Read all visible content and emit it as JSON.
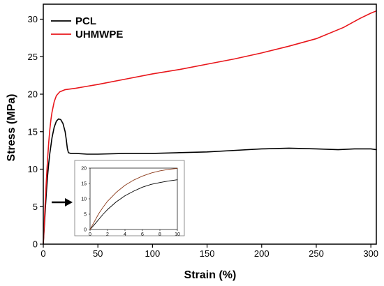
{
  "chart_data": [
    {
      "type": "line",
      "title": "",
      "xlabel": "Strain (%)",
      "ylabel": "Stress (MPa)",
      "xlim": [
        0,
        305
      ],
      "ylim": [
        0,
        32
      ],
      "xticks": [
        0,
        50,
        100,
        150,
        200,
        250,
        300
      ],
      "yticks": [
        0,
        5,
        10,
        15,
        20,
        25,
        30
      ],
      "grid": false,
      "legend": "top-left",
      "series": [
        {
          "name": "PCL",
          "color": "#000000",
          "x": [
            0,
            1,
            2,
            3,
            4,
            5,
            6,
            8,
            10,
            12,
            14,
            16,
            18,
            20,
            21,
            22,
            23,
            25,
            30,
            40,
            50,
            75,
            100,
            125,
            150,
            175,
            200,
            225,
            250,
            270,
            285,
            300,
            305
          ],
          "y": [
            0,
            2.5,
            5.0,
            7.3,
            9.2,
            10.8,
            12.1,
            14.2,
            15.6,
            16.4,
            16.7,
            16.6,
            16.1,
            15.0,
            14.0,
            12.8,
            12.2,
            12.1,
            12.1,
            12.0,
            12.0,
            12.1,
            12.1,
            12.2,
            12.3,
            12.5,
            12.7,
            12.8,
            12.7,
            12.6,
            12.7,
            12.7,
            12.6
          ]
        },
        {
          "name": "UHMWPE",
          "color": "#e8161b",
          "x": [
            0,
            1,
            2,
            3,
            4,
            5,
            6,
            7,
            8,
            10,
            12,
            15,
            20,
            30,
            50,
            75,
            100,
            125,
            150,
            175,
            200,
            225,
            250,
            275,
            290,
            300,
            305
          ],
          "y": [
            0,
            3.2,
            6.2,
            9.0,
            11.5,
            13.6,
            15.3,
            16.6,
            17.6,
            19.0,
            19.8,
            20.3,
            20.6,
            20.8,
            21.3,
            22.0,
            22.7,
            23.3,
            24.0,
            24.7,
            25.5,
            26.4,
            27.4,
            28.9,
            30.1,
            30.8,
            31.1
          ]
        }
      ],
      "annotation": "arrow pointing to zoomed inset"
    },
    {
      "type": "line",
      "title": "",
      "xlabel": "",
      "ylabel": "",
      "xlim": [
        0,
        10
      ],
      "ylim": [
        0,
        20
      ],
      "xticks": [
        0,
        2,
        4,
        6,
        8,
        10
      ],
      "yticks": [
        0,
        5,
        10,
        15,
        20
      ],
      "grid": false,
      "series": [
        {
          "name": "PCL",
          "color": "#000000",
          "x": [
            0,
            0.5,
            1,
            1.5,
            2,
            3,
            4,
            5,
            6,
            7,
            8,
            9,
            10
          ],
          "y": [
            0,
            1.6,
            3.3,
            5.0,
            6.5,
            9.0,
            11.0,
            12.5,
            13.8,
            14.7,
            15.3,
            15.8,
            16.2
          ]
        },
        {
          "name": "UHMWPE",
          "color": "#8b3a1a",
          "x": [
            0,
            0.5,
            1,
            1.5,
            2,
            3,
            4,
            5,
            6,
            7,
            8,
            9,
            10
          ],
          "y": [
            0,
            2.6,
            5.2,
            7.3,
            9.2,
            12.1,
            14.4,
            16.1,
            17.4,
            18.4,
            19.1,
            19.6,
            19.9
          ]
        }
      ]
    }
  ]
}
